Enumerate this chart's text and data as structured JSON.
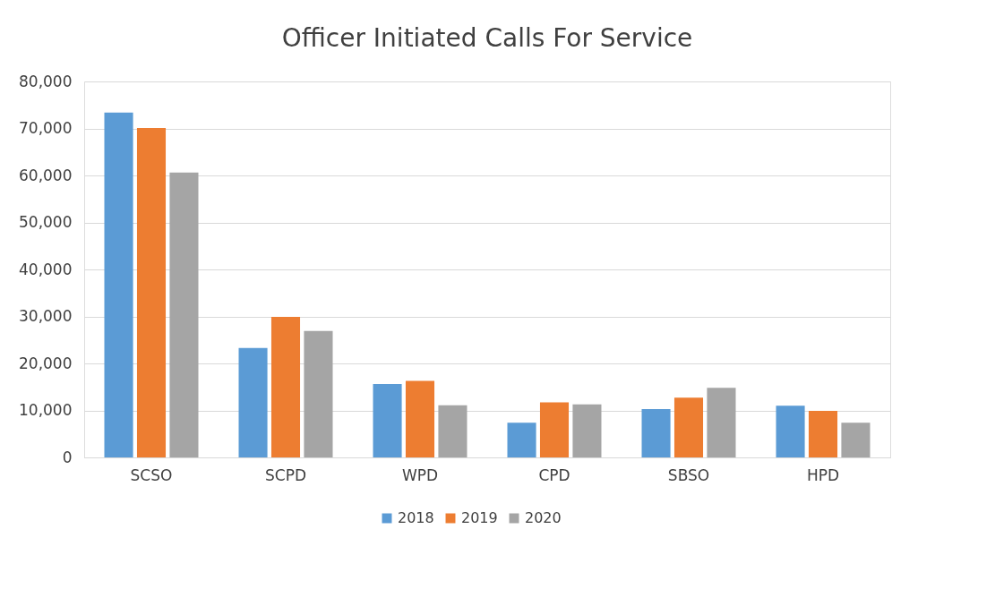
{
  "chart_data": {
    "type": "bar",
    "title": "Officer Initiated Calls For Service",
    "categories": [
      "SCSO",
      "SCPD",
      "WPD",
      "CPD",
      "SBSO",
      "HPD"
    ],
    "series": [
      {
        "name": "2018",
        "color": "#5b9bd5",
        "values": [
          73400,
          23300,
          15600,
          7400,
          10300,
          11000
        ]
      },
      {
        "name": "2019",
        "color": "#ed7d31",
        "values": [
          70100,
          29900,
          16300,
          11700,
          12700,
          9900
        ]
      },
      {
        "name": "2020",
        "color": "#a5a5a5",
        "values": [
          60600,
          26900,
          11100,
          11300,
          14800,
          7400
        ]
      }
    ],
    "ylim": [
      0,
      80000
    ],
    "yticks": [
      0,
      {
        "value": 10000,
        "label": "10,000"
      },
      {
        "value": 20000,
        "label": "20,000"
      },
      {
        "value": 30000,
        "label": "30,000"
      },
      {
        "value": 40000,
        "label": "40,000"
      },
      {
        "value": 50000,
        "label": "50,000"
      },
      {
        "value": 60000,
        "label": "60,000"
      },
      {
        "value": 70000,
        "label": "70,000"
      },
      {
        "value": 80000,
        "label": "80,000"
      }
    ],
    "grid": "y",
    "legend": "bottom"
  }
}
